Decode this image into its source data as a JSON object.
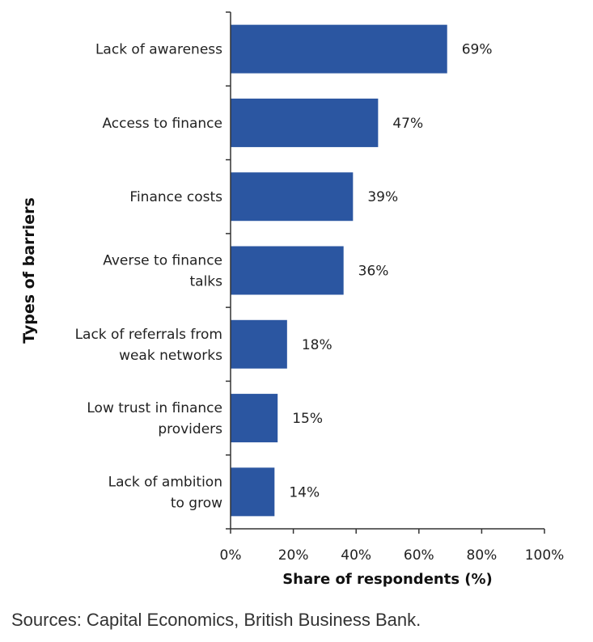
{
  "chart_data": {
    "type": "bar",
    "orientation": "horizontal",
    "categories": [
      [
        "Lack of awareness"
      ],
      [
        "Access to finance"
      ],
      [
        "Finance costs"
      ],
      [
        "Averse to finance",
        "talks"
      ],
      [
        "Lack of referrals from",
        "weak networks"
      ],
      [
        "Low trust in finance",
        "providers"
      ],
      [
        "Lack of ambition",
        "to grow"
      ]
    ],
    "values": [
      69,
      47,
      39,
      36,
      18,
      15,
      14
    ],
    "data_labels": [
      "69%",
      "47%",
      "39%",
      "36%",
      "18%",
      "15%",
      "14%"
    ],
    "xlabel": "Share of respondents (%)",
    "ylabel": "Types of barriers",
    "xlim": [
      0,
      100
    ],
    "xticks": [
      "0%",
      "20%",
      "40%",
      "60%",
      "80%",
      "100%"
    ],
    "grid": false,
    "bar_color": "#2b56a1"
  },
  "source": "Sources: Capital Economics, British Business Bank."
}
